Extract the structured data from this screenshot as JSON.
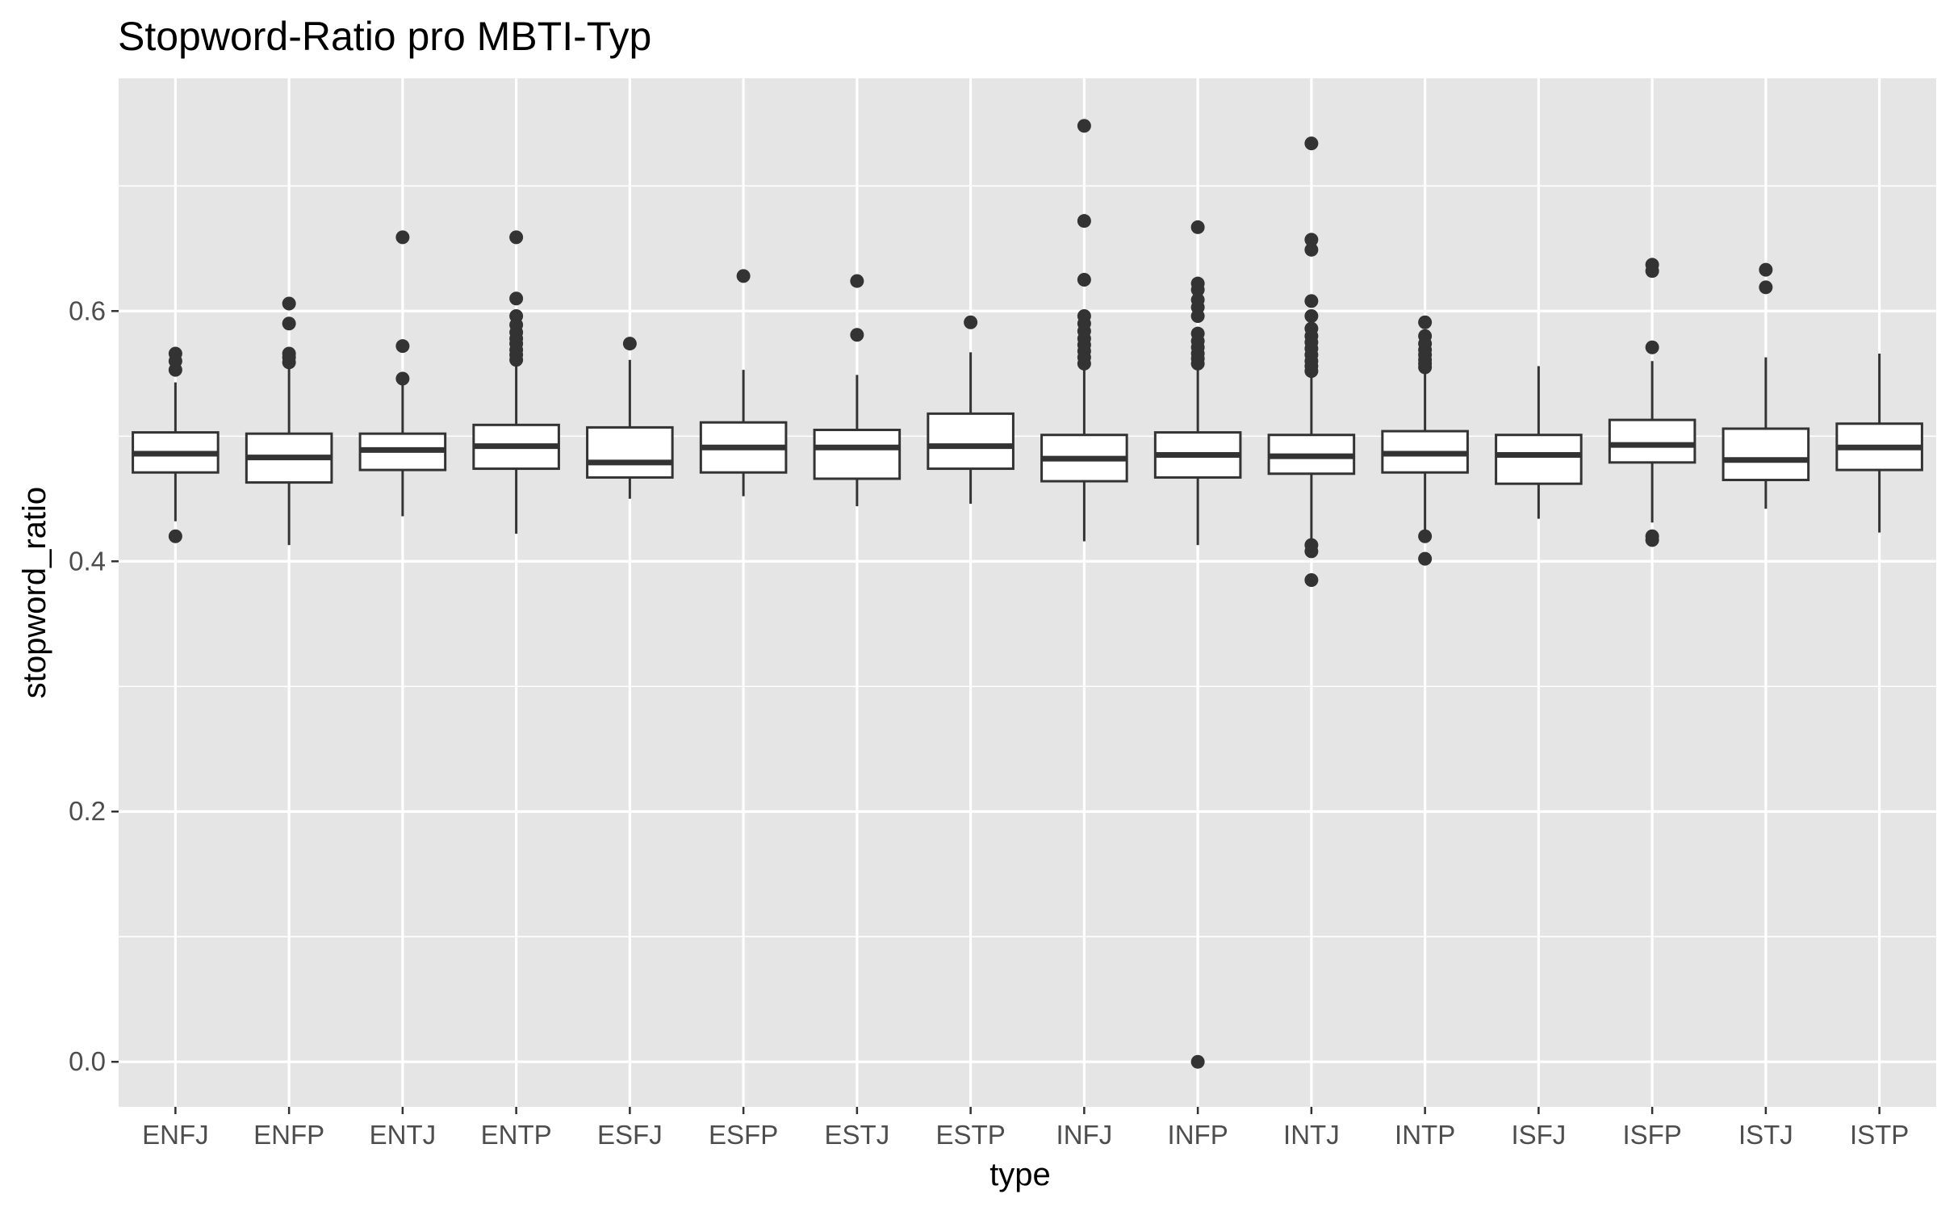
{
  "chart_data": {
    "type": "boxplot",
    "title": "Stopword-Ratio pro MBTI-Typ",
    "xlabel": "type",
    "ylabel": "stopword_ratio",
    "ylim": [
      -0.036,
      0.786
    ],
    "yticks": [
      0.0,
      0.2,
      0.4,
      0.6
    ],
    "ytick_labels": [
      "0.0",
      "0.2",
      "0.4",
      "0.6"
    ],
    "grid": true,
    "panel_background": "#e5e5e5",
    "grid_color": "#ffffff",
    "box_fill": "#ffffff",
    "box_line": "#333333",
    "categories": [
      "ENFJ",
      "ENFP",
      "ENTJ",
      "ENTP",
      "ESFJ",
      "ESFP",
      "ESTJ",
      "ESTP",
      "INFJ",
      "INFP",
      "INTJ",
      "INTP",
      "ISFJ",
      "ISFP",
      "ISTJ",
      "ISTP"
    ],
    "boxes": [
      {
        "type": "ENFJ",
        "whisker_low": 0.432,
        "q1": 0.471,
        "median": 0.486,
        "q3": 0.503,
        "whisker_high": 0.543,
        "outliers": [
          0.42,
          0.553,
          0.56,
          0.566
        ]
      },
      {
        "type": "ENFP",
        "whisker_low": 0.413,
        "q1": 0.463,
        "median": 0.483,
        "q3": 0.502,
        "whisker_high": 0.557,
        "outliers": [
          0.559,
          0.563,
          0.566,
          0.59,
          0.606
        ]
      },
      {
        "type": "ENTJ",
        "whisker_low": 0.436,
        "q1": 0.473,
        "median": 0.489,
        "q3": 0.502,
        "whisker_high": 0.542,
        "outliers": [
          0.546,
          0.572,
          0.659
        ]
      },
      {
        "type": "ENTP",
        "whisker_low": 0.422,
        "q1": 0.474,
        "median": 0.492,
        "q3": 0.509,
        "whisker_high": 0.559,
        "outliers": [
          0.561,
          0.565,
          0.569,
          0.574,
          0.578,
          0.583,
          0.589,
          0.596,
          0.61,
          0.659
        ]
      },
      {
        "type": "ESFJ",
        "whisker_low": 0.45,
        "q1": 0.467,
        "median": 0.479,
        "q3": 0.507,
        "whisker_high": 0.561,
        "outliers": [
          0.574
        ]
      },
      {
        "type": "ESFP",
        "whisker_low": 0.452,
        "q1": 0.471,
        "median": 0.491,
        "q3": 0.511,
        "whisker_high": 0.553,
        "outliers": [
          0.628
        ]
      },
      {
        "type": "ESTJ",
        "whisker_low": 0.444,
        "q1": 0.466,
        "median": 0.491,
        "q3": 0.505,
        "whisker_high": 0.549,
        "outliers": [
          0.581,
          0.624
        ]
      },
      {
        "type": "ESTP",
        "whisker_low": 0.446,
        "q1": 0.474,
        "median": 0.492,
        "q3": 0.518,
        "whisker_high": 0.567,
        "outliers": [
          0.591
        ]
      },
      {
        "type": "INFJ",
        "whisker_low": 0.416,
        "q1": 0.464,
        "median": 0.482,
        "q3": 0.501,
        "whisker_high": 0.555,
        "outliers": [
          0.558,
          0.563,
          0.568,
          0.573,
          0.578,
          0.584,
          0.59,
          0.596,
          0.625,
          0.672,
          0.748
        ]
      },
      {
        "type": "INFP",
        "whisker_low": 0.413,
        "q1": 0.467,
        "median": 0.485,
        "q3": 0.503,
        "whisker_high": 0.556,
        "outliers": [
          0.0,
          0.558,
          0.562,
          0.566,
          0.571,
          0.576,
          0.582,
          0.596,
          0.603,
          0.609,
          0.617,
          0.622,
          0.667
        ]
      },
      {
        "type": "INTJ",
        "whisker_low": 0.418,
        "q1": 0.47,
        "median": 0.484,
        "q3": 0.501,
        "whisker_high": 0.548,
        "outliers": [
          0.385,
          0.408,
          0.413,
          0.552,
          0.556,
          0.56,
          0.565,
          0.57,
          0.575,
          0.58,
          0.586,
          0.596,
          0.608,
          0.649,
          0.657,
          0.734
        ]
      },
      {
        "type": "INTP",
        "whisker_low": 0.423,
        "q1": 0.471,
        "median": 0.486,
        "q3": 0.504,
        "whisker_high": 0.552,
        "outliers": [
          0.402,
          0.42,
          0.555,
          0.558,
          0.561,
          0.565,
          0.569,
          0.574,
          0.58,
          0.591
        ]
      },
      {
        "type": "ISFJ",
        "whisker_low": 0.434,
        "q1": 0.462,
        "median": 0.485,
        "q3": 0.501,
        "whisker_high": 0.556,
        "outliers": []
      },
      {
        "type": "ISFP",
        "whisker_low": 0.431,
        "q1": 0.479,
        "median": 0.493,
        "q3": 0.513,
        "whisker_high": 0.56,
        "outliers": [
          0.417,
          0.42,
          0.571,
          0.632,
          0.637
        ]
      },
      {
        "type": "ISTJ",
        "whisker_low": 0.442,
        "q1": 0.465,
        "median": 0.481,
        "q3": 0.506,
        "whisker_high": 0.563,
        "outliers": [
          0.619,
          0.633
        ]
      },
      {
        "type": "ISTP",
        "whisker_low": 0.423,
        "q1": 0.473,
        "median": 0.491,
        "q3": 0.51,
        "whisker_high": 0.566,
        "outliers": []
      }
    ]
  }
}
